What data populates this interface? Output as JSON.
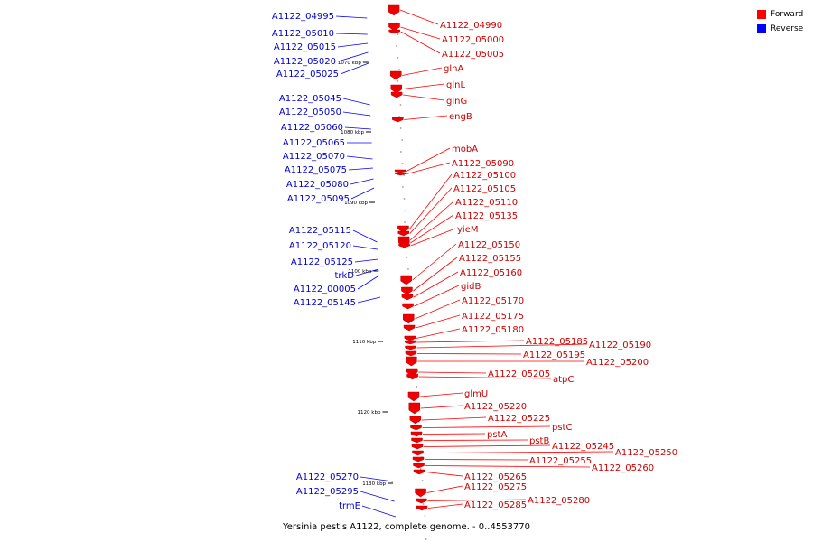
{
  "legend": {
    "forward": {
      "label": "Forward",
      "color": "#ff0000"
    },
    "reverse": {
      "label": "Reverse",
      "color": "#0000ff"
    }
  },
  "caption": "Yersinia pestis A1122, complete genome. - 0..4553770",
  "scale_ticks": [
    "1070 kbp",
    "1080 kbp",
    "1090 kbp",
    "1100 kbp",
    "1110 kbp",
    "1120 kbp",
    "1130 kbp"
  ],
  "forward_genes": [
    "A1122_04990",
    "A1122_05000",
    "A1122_05005",
    "glnA",
    "glnL",
    "glnG",
    "engB",
    "mobA",
    "A1122_05090",
    "A1122_05100",
    "A1122_05105",
    "A1122_05110",
    "A1122_05135",
    "yieM",
    "A1122_05150",
    "A1122_05155",
    "A1122_05160",
    "gidB",
    "A1122_05170",
    "A1122_05175",
    "A1122_05180",
    "A1122_05185",
    "A1122_05190",
    "A1122_05195",
    "A1122_05200",
    "A1122_05205",
    "atpC",
    "glmU",
    "A1122_05220",
    "A1122_05225",
    "pstC",
    "pstA",
    "pstB",
    "A1122_05245",
    "A1122_05250",
    "A1122_05255",
    "A1122_05260",
    "A1122_05265",
    "A1122_05275",
    "A1122_05280",
    "A1122_05285"
  ],
  "reverse_genes": [
    "A1122_04995",
    "A1122_05010",
    "A1122_05015",
    "A1122_05020",
    "A1122_05025",
    "A1122_05045",
    "A1122_05050",
    "A1122_05060",
    "A1122_05065",
    "A1122_05070",
    "A1122_05075",
    "A1122_05080",
    "A1122_05095",
    "A1122_05115",
    "A1122_05120",
    "A1122_05125",
    "trkD",
    "A1122_00005",
    "A1122_05145",
    "A1122_05270",
    "A1122_05295",
    "trmE"
  ]
}
